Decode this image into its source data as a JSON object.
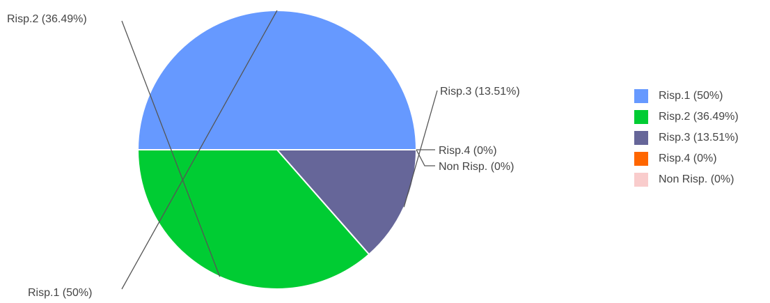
{
  "chart_data": {
    "type": "pie",
    "slices": [
      {
        "label": "Risp.1 (50%)",
        "name": "Risp.1",
        "value": 50,
        "color": "#6699ff"
      },
      {
        "label": "Risp.2 (36.49%)",
        "name": "Risp.2",
        "value": 36.49,
        "color": "#00cc33"
      },
      {
        "label": "Risp.3 (13.51%)",
        "name": "Risp.3",
        "value": 13.51,
        "color": "#666699"
      },
      {
        "label": "Risp.4 (0%)",
        "name": "Risp.4",
        "value": 0,
        "color": "#ff6600"
      },
      {
        "label": "Non Risp. (0%)",
        "name": "Non Risp.",
        "value": 0,
        "color": "#f9cccc"
      }
    ],
    "legend": {
      "placement": "right",
      "entries": [
        "Risp.1 (50%)",
        "Risp.2 (36.49%)",
        "Risp.3 (13.51%)",
        "Risp.4 (0%)",
        "Non Risp. (0%)"
      ]
    },
    "start_angle": "right, counterclockwise from 3 o'clock position"
  }
}
